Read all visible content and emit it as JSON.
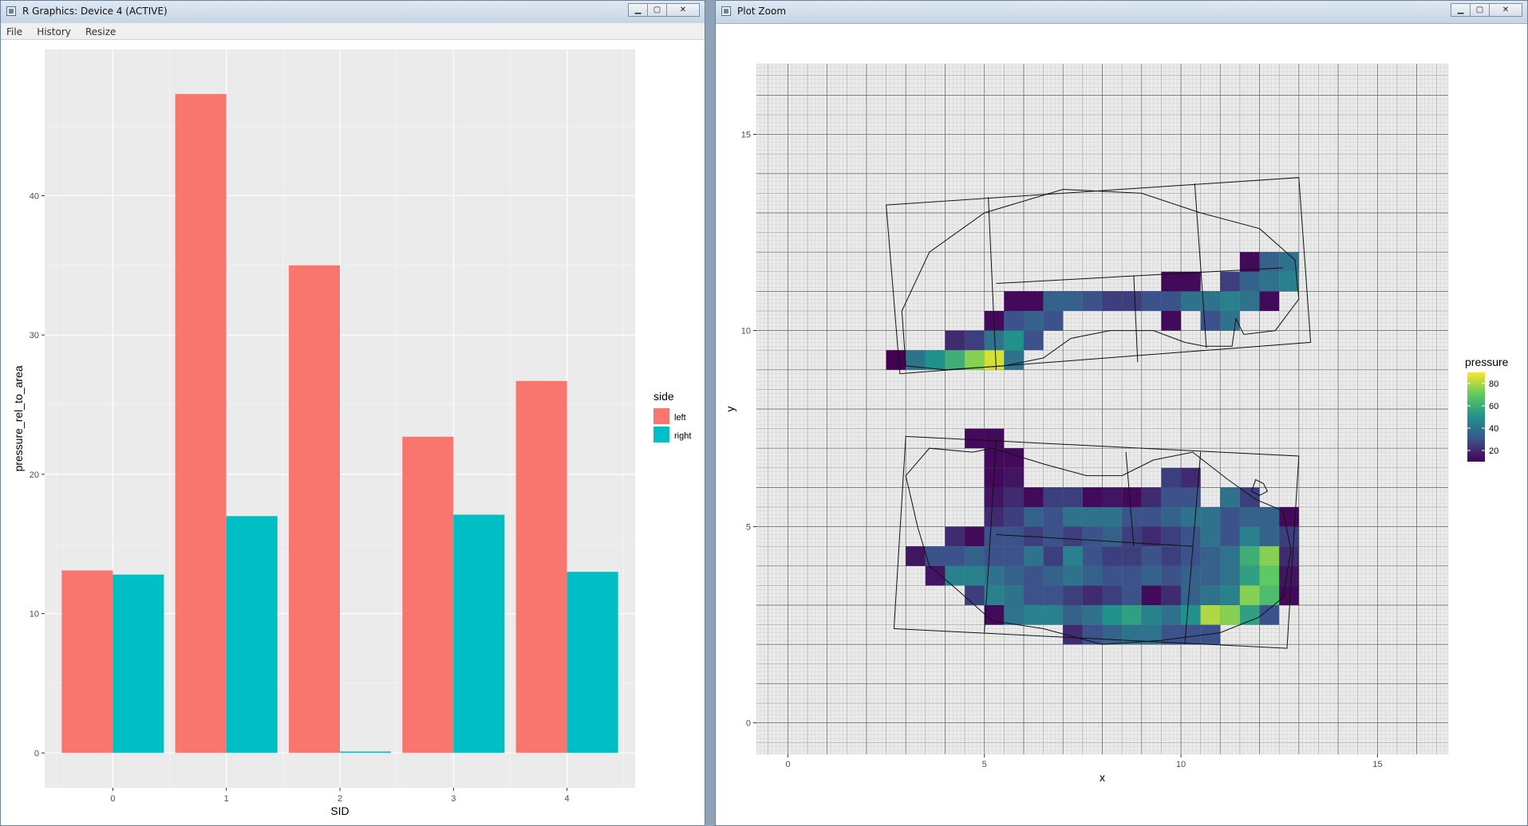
{
  "window1": {
    "title": "R Graphics: Device 4 (ACTIVE)",
    "menu": [
      "File",
      "History",
      "Resize"
    ],
    "controls": {
      "minimize": "▁",
      "maximize": "▢",
      "close": "✕"
    }
  },
  "window2": {
    "title": "Plot Zoom",
    "controls": {
      "minimize": "▁",
      "maximize": "▢",
      "close": "✕"
    }
  },
  "colors": {
    "panel_bg": "#ebebeb",
    "grid_major": "#ffffff",
    "left": "#f8766d",
    "right": "#00bfc4",
    "axis_text": "#4d4d4d",
    "title_text": "#000000"
  },
  "chart_data": [
    {
      "type": "bar",
      "categories": [
        "0",
        "1",
        "2",
        "3",
        "4"
      ],
      "series": [
        {
          "name": "left",
          "values": [
            13.1,
            47.3,
            35.0,
            22.7,
            26.7
          ]
        },
        {
          "name": "right",
          "values": [
            12.8,
            17.0,
            0.1,
            17.1,
            13.0
          ]
        }
      ],
      "xlabel": "SID",
      "ylabel": "pressure_rel_to_area",
      "ylim": [
        -2.5,
        50.5
      ],
      "y_ticks": [
        0,
        10,
        20,
        30,
        40
      ],
      "legend": {
        "title": "side",
        "labels": [
          "left",
          "right"
        ],
        "position": "right"
      },
      "grid": true
    },
    {
      "type": "heatmap",
      "xlabel": "x",
      "ylabel": "y",
      "xlim": [
        -0.8,
        16.8
      ],
      "ylim": [
        -0.8,
        16.8
      ],
      "x_ticks": [
        0,
        5,
        10,
        15
      ],
      "y_ticks": [
        0,
        5,
        10,
        15
      ],
      "legend": {
        "title": "pressure",
        "ticks": [
          20,
          40,
          60,
          80
        ],
        "position": "right"
      },
      "grid": true,
      "cell_size": 0.5,
      "cells": [
        [
          2.75,
          9.25,
          10
        ],
        [
          3.25,
          9.25,
          40
        ],
        [
          3.75,
          9.25,
          50
        ],
        [
          4.25,
          9.25,
          60
        ],
        [
          4.75,
          9.25,
          75
        ],
        [
          5.25,
          9.25,
          85
        ],
        [
          5.75,
          9.25,
          40
        ],
        [
          4.25,
          9.75,
          20
        ],
        [
          4.75,
          9.75,
          25
        ],
        [
          5.25,
          9.75,
          40
        ],
        [
          5.75,
          9.75,
          50
        ],
        [
          6.25,
          9.75,
          30
        ],
        [
          5.25,
          10.25,
          12
        ],
        [
          5.75,
          10.25,
          30
        ],
        [
          6.25,
          10.25,
          35
        ],
        [
          6.75,
          10.25,
          30
        ],
        [
          5.75,
          10.75,
          12
        ],
        [
          6.25,
          10.75,
          12
        ],
        [
          6.75,
          10.75,
          35
        ],
        [
          7.25,
          10.75,
          35
        ],
        [
          7.75,
          10.75,
          30
        ],
        [
          8.25,
          10.75,
          25
        ],
        [
          8.75,
          10.75,
          25
        ],
        [
          9.25,
          10.75,
          30
        ],
        [
          9.75,
          10.75,
          30
        ],
        [
          10.25,
          10.75,
          40
        ],
        [
          10.75,
          10.75,
          40
        ],
        [
          11.25,
          10.75,
          45
        ],
        [
          11.75,
          10.75,
          40
        ],
        [
          12.25,
          10.75,
          12
        ],
        [
          9.75,
          11.25,
          12
        ],
        [
          10.25,
          11.25,
          12
        ],
        [
          11.25,
          11.25,
          25
        ],
        [
          11.75,
          11.25,
          35
        ],
        [
          12.25,
          11.25,
          40
        ],
        [
          12.75,
          11.25,
          45
        ],
        [
          11.75,
          11.75,
          12
        ],
        [
          12.25,
          11.75,
          35
        ],
        [
          12.75,
          11.75,
          40
        ],
        [
          9.75,
          10.25,
          12
        ],
        [
          10.75,
          10.25,
          30
        ],
        [
          11.25,
          10.25,
          40
        ],
        [
          4.75,
          7.25,
          12
        ],
        [
          5.25,
          7.25,
          12
        ],
        [
          5.75,
          6.75,
          12
        ],
        [
          5.25,
          6.25,
          12
        ],
        [
          5.75,
          6.25,
          15
        ],
        [
          5.25,
          5.75,
          15
        ],
        [
          5.75,
          5.75,
          20
        ],
        [
          6.75,
          5.75,
          25
        ],
        [
          7.25,
          5.75,
          25
        ],
        [
          8.75,
          5.75,
          12
        ],
        [
          9.25,
          5.75,
          20
        ],
        [
          9.75,
          5.75,
          30
        ],
        [
          10.25,
          5.75,
          30
        ],
        [
          11.25,
          5.75,
          40
        ],
        [
          11.75,
          5.75,
          25
        ],
        [
          9.75,
          6.25,
          25
        ],
        [
          10.25,
          6.25,
          20
        ],
        [
          5.25,
          5.25,
          20
        ],
        [
          5.75,
          5.25,
          25
        ],
        [
          6.25,
          5.25,
          35
        ],
        [
          6.75,
          5.25,
          30
        ],
        [
          7.25,
          5.25,
          40
        ],
        [
          7.75,
          5.25,
          40
        ],
        [
          8.25,
          5.25,
          40
        ],
        [
          8.75,
          5.25,
          30
        ],
        [
          9.25,
          5.25,
          30
        ],
        [
          9.75,
          5.25,
          35
        ],
        [
          10.25,
          5.25,
          40
        ],
        [
          10.75,
          5.25,
          40
        ],
        [
          11.25,
          5.25,
          30
        ],
        [
          11.75,
          5.25,
          35
        ],
        [
          12.25,
          5.25,
          35
        ],
        [
          12.75,
          5.25,
          12
        ],
        [
          4.25,
          4.75,
          20
        ],
        [
          4.75,
          4.75,
          12
        ],
        [
          5.25,
          4.75,
          30
        ],
        [
          5.75,
          4.75,
          30
        ],
        [
          6.25,
          4.75,
          25
        ],
        [
          6.75,
          4.75,
          30
        ],
        [
          7.25,
          4.75,
          25
        ],
        [
          7.75,
          4.75,
          30
        ],
        [
          8.25,
          4.75,
          35
        ],
        [
          8.75,
          4.75,
          25
        ],
        [
          9.25,
          4.75,
          20
        ],
        [
          9.75,
          4.75,
          25
        ],
        [
          10.25,
          4.75,
          30
        ],
        [
          10.75,
          4.75,
          40
        ],
        [
          11.25,
          4.75,
          30
        ],
        [
          11.75,
          4.75,
          45
        ],
        [
          12.25,
          4.75,
          35
        ],
        [
          12.75,
          4.75,
          25
        ],
        [
          3.25,
          4.25,
          15
        ],
        [
          3.75,
          4.25,
          30
        ],
        [
          4.25,
          4.25,
          30
        ],
        [
          4.75,
          4.25,
          35
        ],
        [
          5.25,
          4.25,
          30
        ],
        [
          5.75,
          4.25,
          30
        ],
        [
          6.25,
          4.25,
          40
        ],
        [
          6.75,
          4.25,
          25
        ],
        [
          7.25,
          4.25,
          45
        ],
        [
          7.75,
          4.25,
          30
        ],
        [
          8.25,
          4.25,
          25
        ],
        [
          8.75,
          4.25,
          25
        ],
        [
          9.25,
          4.25,
          30
        ],
        [
          9.75,
          4.25,
          25
        ],
        [
          10.25,
          4.25,
          30
        ],
        [
          10.75,
          4.25,
          35
        ],
        [
          11.25,
          4.25,
          40
        ],
        [
          11.75,
          4.25,
          60
        ],
        [
          12.25,
          4.25,
          75
        ],
        [
          12.75,
          4.25,
          20
        ],
        [
          3.75,
          3.75,
          15
        ],
        [
          4.25,
          3.75,
          45
        ],
        [
          4.75,
          3.75,
          45
        ],
        [
          5.25,
          3.75,
          40
        ],
        [
          5.75,
          3.75,
          35
        ],
        [
          6.25,
          3.75,
          30
        ],
        [
          6.75,
          3.75,
          35
        ],
        [
          7.25,
          3.75,
          40
        ],
        [
          7.75,
          3.75,
          35
        ],
        [
          8.25,
          3.75,
          30
        ],
        [
          8.75,
          3.75,
          30
        ],
        [
          9.25,
          3.75,
          35
        ],
        [
          9.75,
          3.75,
          30
        ],
        [
          10.25,
          3.75,
          35
        ],
        [
          10.75,
          3.75,
          35
        ],
        [
          11.25,
          3.75,
          40
        ],
        [
          11.75,
          3.75,
          55
        ],
        [
          12.25,
          3.75,
          70
        ],
        [
          12.75,
          3.75,
          15
        ],
        [
          4.75,
          3.25,
          25
        ],
        [
          5.25,
          3.25,
          45
        ],
        [
          5.75,
          3.25,
          40
        ],
        [
          6.25,
          3.25,
          30
        ],
        [
          6.75,
          3.25,
          30
        ],
        [
          7.25,
          3.25,
          25
        ],
        [
          7.75,
          3.25,
          20
        ],
        [
          8.25,
          3.25,
          25
        ],
        [
          8.75,
          3.25,
          30
        ],
        [
          9.25,
          3.25,
          12
        ],
        [
          9.75,
          3.25,
          20
        ],
        [
          10.25,
          3.25,
          35
        ],
        [
          10.75,
          3.25,
          40
        ],
        [
          11.25,
          3.25,
          45
        ],
        [
          11.75,
          3.25,
          75
        ],
        [
          12.25,
          3.25,
          65
        ],
        [
          12.75,
          3.25,
          12
        ],
        [
          5.25,
          2.75,
          12
        ],
        [
          5.75,
          2.75,
          40
        ],
        [
          6.25,
          2.75,
          45
        ],
        [
          6.75,
          2.75,
          45
        ],
        [
          7.25,
          2.75,
          35
        ],
        [
          7.75,
          2.75,
          40
        ],
        [
          8.25,
          2.75,
          50
        ],
        [
          8.75,
          2.75,
          55
        ],
        [
          9.25,
          2.75,
          45
        ],
        [
          9.75,
          2.75,
          40
        ],
        [
          10.25,
          2.75,
          50
        ],
        [
          10.75,
          2.75,
          80
        ],
        [
          11.25,
          2.75,
          75
        ],
        [
          11.75,
          2.75,
          55
        ],
        [
          12.25,
          2.75,
          30
        ],
        [
          7.25,
          2.25,
          20
        ],
        [
          7.75,
          2.25,
          30
        ],
        [
          8.25,
          2.25,
          35
        ],
        [
          8.75,
          2.25,
          40
        ],
        [
          9.25,
          2.25,
          40
        ],
        [
          9.75,
          2.25,
          30
        ],
        [
          10.25,
          2.25,
          30
        ],
        [
          10.75,
          2.25,
          30
        ],
        [
          5.25,
          6.75,
          12
        ],
        [
          6.25,
          5.75,
          12
        ],
        [
          7.75,
          5.75,
          12
        ],
        [
          8.25,
          5.75,
          15
        ]
      ]
    }
  ]
}
